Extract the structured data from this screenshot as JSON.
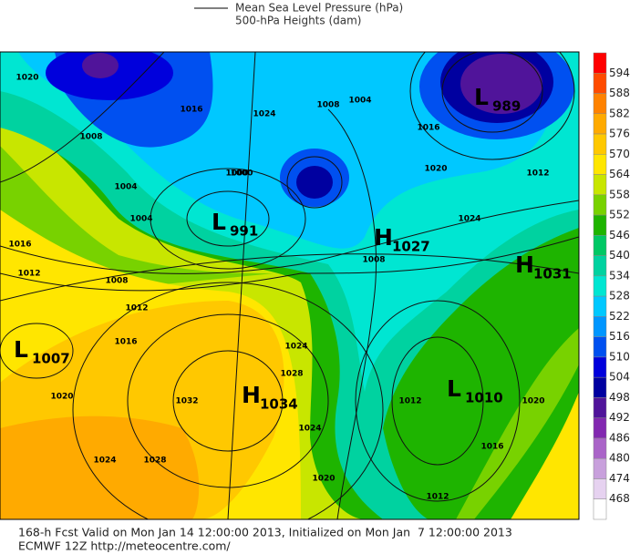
{
  "legend": {
    "items": [
      "Mean Sea Level Pressure (hPa)",
      "500-hPa Heights (dam)"
    ]
  },
  "centers": [
    {
      "letter": "L",
      "value": "991"
    },
    {
      "letter": "H",
      "value": "1027"
    },
    {
      "letter": "H",
      "value": "1031"
    },
    {
      "letter": "L",
      "value": "1007"
    },
    {
      "letter": "H",
      "value": "1034"
    },
    {
      "letter": "L",
      "value": "1010"
    },
    {
      "letter": "L",
      "value": "989"
    }
  ],
  "isobar_labels": [
    "1020",
    "1008",
    "1004",
    "1004",
    "1000",
    "1016",
    "1012",
    "1008",
    "1012",
    "1016",
    "1020",
    "1024",
    "1028",
    "1032",
    "1024",
    "1028",
    "1024",
    "1020",
    "1012",
    "1008",
    "1016",
    "1020",
    "1024",
    "1012",
    "1016",
    "1020",
    "1012",
    "1016",
    "1024",
    "1008",
    "1004",
    "1000"
  ],
  "colorbar": {
    "labels": [
      594,
      588,
      582,
      576,
      570,
      564,
      558,
      552,
      546,
      540,
      534,
      528,
      522,
      516,
      510,
      504,
      498,
      492,
      486,
      480,
      474,
      468
    ],
    "colors": [
      "#ff0000",
      "#ff4b00",
      "#ff8200",
      "#ffaa00",
      "#ffc800",
      "#ffe600",
      "#c8e600",
      "#78d200",
      "#1eb400",
      "#00c864",
      "#00d2a0",
      "#00e6d2",
      "#00c8ff",
      "#0096ff",
      "#0050f0",
      "#0000dc",
      "#0000a0",
      "#50149a",
      "#8228b0",
      "#aa64c8",
      "#c8a0dc",
      "#e6d2f0",
      "#ffffff"
    ]
  },
  "footer": {
    "line1": "168-h Fcst Valid on Mon Jan 14 12:00:00 2013, Initialized on Mon Jan  7 12:00:00 2013",
    "line2": "ECMWF 12Z http://meteocentre.com/"
  }
}
